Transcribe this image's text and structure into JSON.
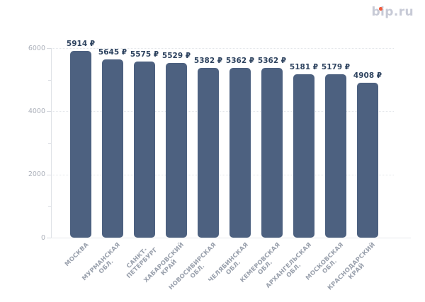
{
  "header": {
    "logo_text": "bip.ru",
    "logo_color": "#c7cad6",
    "logo_dot_color": "#f0593c"
  },
  "chart_data": {
    "type": "bar",
    "title": "",
    "xlabel": "",
    "ylabel": "",
    "categories": [
      "МОСКВА",
      "МУРМАНСКАЯ ОБЛ.",
      "САНКТ-ПЕТЕРБУРГ",
      "ХАБАРОВСКИЙ КРАЙ",
      "НОВОСИБИРСКАЯ ОБЛ.",
      "ЧЕЛЯБИНСКАЯ ОБЛ.",
      "КЕМЕРОВСКАЯ ОБЛ.",
      "АРХАНГЕЛЬСКАЯ ОБЛ.",
      "МОСКОВСКАЯ ОБЛ.",
      "КРАСНОДАРСКИЙ КРАЙ"
    ],
    "category_lines": [
      [
        "МОСКВА"
      ],
      [
        "МУРМАНСКАЯ",
        "ОБЛ."
      ],
      [
        "САНКТ-",
        "ПЕТЕРБУРГ"
      ],
      [
        "ХАБАРОВСКИЙ",
        "КРАЙ"
      ],
      [
        "НОВОСИБИРСКАЯ",
        "ОБЛ."
      ],
      [
        "ЧЕЛЯБИНСКАЯ",
        "ОБЛ."
      ],
      [
        "КЕМЕРОВСКАЯ",
        "ОБЛ."
      ],
      [
        "АРХАНГЕЛЬСКАЯ",
        "ОБЛ."
      ],
      [
        "МОСКОВСКАЯ",
        "ОБЛ."
      ],
      [
        "КРАСНОДАРСКИЙ",
        "КРАЙ"
      ]
    ],
    "values": [
      5914,
      5645,
      5575,
      5529,
      5382,
      5362,
      5362,
      5181,
      5179,
      4908
    ],
    "value_labels": [
      "5914 ₽",
      "5645 ₽",
      "5575 ₽",
      "5529 ₽",
      "5382 ₽",
      "5362 ₽",
      "5362 ₽",
      "5181 ₽",
      "5179 ₽",
      "4908 ₽"
    ],
    "ylim": [
      0,
      6000
    ],
    "yticks": [
      {
        "value": 0,
        "label": "0"
      },
      {
        "value": 2000,
        "label": "2000"
      },
      {
        "value": 4000,
        "label": "4000"
      },
      {
        "value": 6000,
        "label": "6000"
      }
    ],
    "yticks_minor": [
      1000,
      3000,
      5000
    ],
    "gridlines_at": [
      2000,
      4000,
      6000
    ],
    "grid": "dotted-horizontal",
    "legend": null,
    "colors": {
      "bar": "#4d6180",
      "value_label": "#2f4460",
      "ytick_label": "#abb0ba",
      "category_label": "#9aa1ad",
      "gridline": "#e3e6ea",
      "axis_line": "#dfe2e7",
      "baseline": "#e6e8eb",
      "tick_mark": "#d6d9df",
      "background": "#ffffff"
    }
  }
}
